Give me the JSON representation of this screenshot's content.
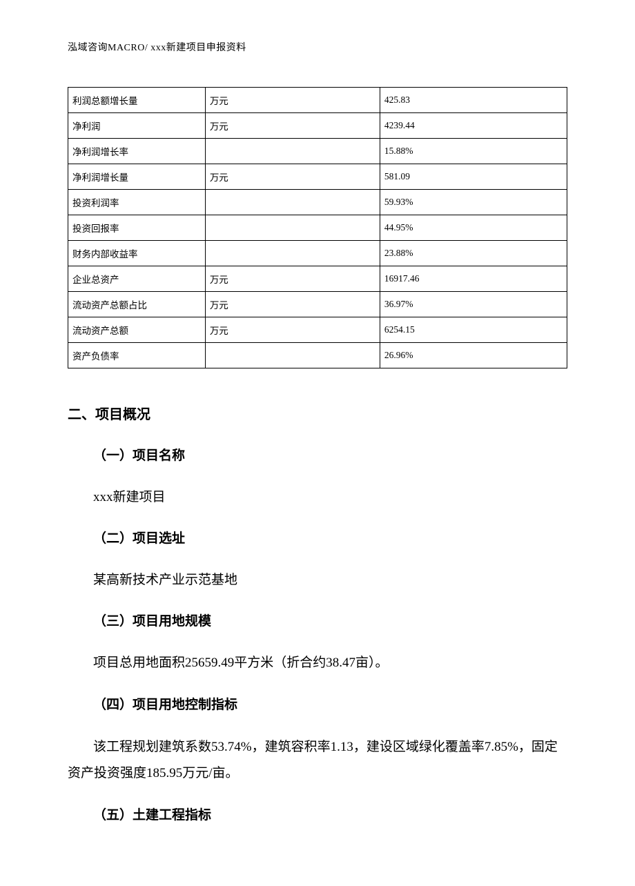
{
  "header": "泓域咨询MACRO/   xxx新建项目申报资料",
  "table": {
    "rows": [
      [
        "利润总额增长量",
        "万元",
        "425.83"
      ],
      [
        "净利润",
        "万元",
        "4239.44"
      ],
      [
        "净利润增长率",
        "",
        "15.88%"
      ],
      [
        "净利润增长量",
        "万元",
        "581.09"
      ],
      [
        "投资利润率",
        "",
        "59.93%"
      ],
      [
        "投资回报率",
        "",
        "44.95%"
      ],
      [
        "财务内部收益率",
        "",
        "23.88%"
      ],
      [
        "企业总资产",
        "万元",
        "16917.46"
      ],
      [
        "流动资产总额占比",
        "万元",
        "36.97%"
      ],
      [
        "流动资产总额",
        "万元",
        "6254.15"
      ],
      [
        "资产负债率",
        "",
        "26.96%"
      ]
    ]
  },
  "section2": {
    "title": "二、项目概况",
    "sub1": {
      "title": "（一）项目名称",
      "text": "xxx新建项目"
    },
    "sub2": {
      "title": "（二）项目选址",
      "text": "某高新技术产业示范基地"
    },
    "sub3": {
      "title": "（三）项目用地规模",
      "text": "项目总用地面积25659.49平方米（折合约38.47亩）。"
    },
    "sub4": {
      "title": "（四）项目用地控制指标",
      "text": "该工程规划建筑系数53.74%，建筑容积率1.13，建设区域绿化覆盖率7.85%，固定资产投资强度185.95万元/亩。"
    },
    "sub5": {
      "title": "（五）土建工程指标"
    }
  }
}
